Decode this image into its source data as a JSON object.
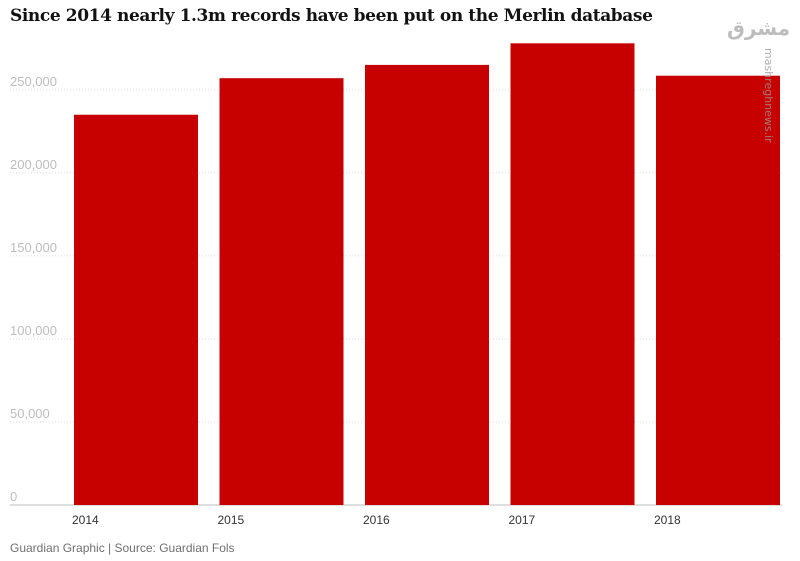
{
  "chart_data": {
    "type": "bar",
    "title": "Since 2014 nearly 1.3m records have been put on the Merlin database",
    "categories": [
      "2014",
      "2015",
      "2016",
      "2017",
      "2018"
    ],
    "values": [
      235000,
      257000,
      265000,
      278000,
      258500
    ],
    "ylim": [
      0,
      280000
    ],
    "yticks": [
      0,
      50000,
      100000,
      150000,
      200000,
      250000
    ],
    "ytick_labels": [
      "0",
      "50,000",
      "100,000",
      "150,000",
      "200,000",
      "250,000"
    ],
    "xlabel": "",
    "ylabel": "",
    "grid": true,
    "bar_color": "#c70000",
    "grid_color": "#dcdcdc",
    "tick_label_color": "#bdbdbd"
  },
  "source_note": "Guardian Graphic | Source: Guardian Fols",
  "watermark": {
    "logo_text": "مشرق",
    "url_text": "mashreghnews.ir"
  }
}
